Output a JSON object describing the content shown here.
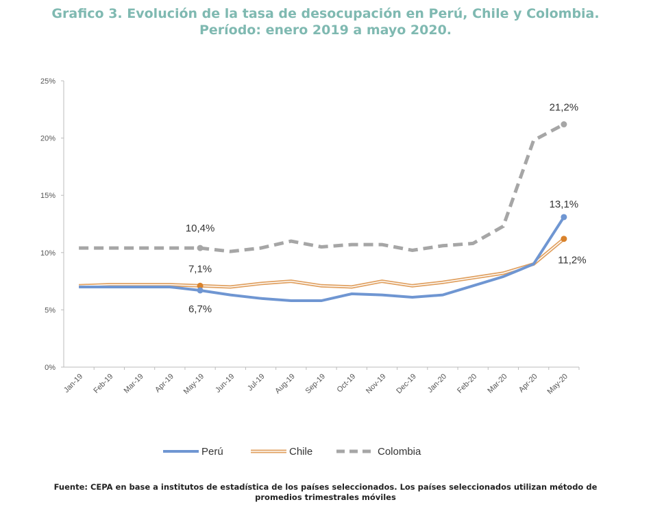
{
  "title_line1": "Grafico 3. Evolución de la tasa de desocupación en Perú, Chile y Colombia.",
  "title_line2": "Período: enero 2019 a mayo 2020.",
  "footnote_line1": "Fuente: CEPA en base a institutos de estadística de los países seleccionados. Los países seleccionados utilizan método de",
  "footnote_line2": "promedios trimestrales móviles",
  "chart_data": {
    "type": "line",
    "categories": [
      "Jan-19",
      "Feb-19",
      "Mar-19",
      "Apr-19",
      "May-19",
      "Jun-19",
      "Jul-19",
      "Aug-19",
      "Sep-19",
      "Oct-19",
      "Nov-19",
      "Dec-19",
      "Jan-20",
      "Feb-20",
      "Mar-20",
      "Apr-20",
      "May-20"
    ],
    "yticks": [
      "0%",
      "5%",
      "10%",
      "15%",
      "20%",
      "25%"
    ],
    "ylim": [
      0,
      25
    ],
    "grid": false,
    "legend": "bottom",
    "series": [
      {
        "name": "Perú",
        "color": "#6f96d2",
        "style": "solid",
        "values": [
          7.0,
          7.0,
          7.0,
          7.0,
          6.7,
          6.3,
          6.0,
          5.8,
          5.8,
          6.4,
          6.3,
          6.1,
          6.3,
          7.1,
          7.9,
          9.0,
          13.1
        ]
      },
      {
        "name": "Chile",
        "color": "#e0a060",
        "style": "double",
        "values": [
          7.1,
          7.2,
          7.2,
          7.2,
          7.1,
          7.0,
          7.3,
          7.5,
          7.1,
          7.0,
          7.5,
          7.1,
          7.4,
          7.8,
          8.2,
          9.0,
          11.2
        ]
      },
      {
        "name": "Colombia",
        "color": "#a6a6a6",
        "style": "dashed",
        "values": [
          10.4,
          10.4,
          10.4,
          10.4,
          10.4,
          10.1,
          10.4,
          11.0,
          10.5,
          10.7,
          10.7,
          10.2,
          10.6,
          10.8,
          12.3,
          19.8,
          21.2
        ]
      }
    ],
    "annotations": [
      {
        "text": "10,4%",
        "series": "Colombia",
        "category": "May-19"
      },
      {
        "text": "7,1%",
        "series": "Chile",
        "category": "May-19"
      },
      {
        "text": "6,7%",
        "series": "Perú",
        "category": "May-19"
      },
      {
        "text": "21,2%",
        "series": "Colombia",
        "category": "May-20"
      },
      {
        "text": "13,1%",
        "series": "Perú",
        "category": "May-20"
      },
      {
        "text": "11,2%",
        "series": "Chile",
        "category": "May-20"
      }
    ]
  }
}
